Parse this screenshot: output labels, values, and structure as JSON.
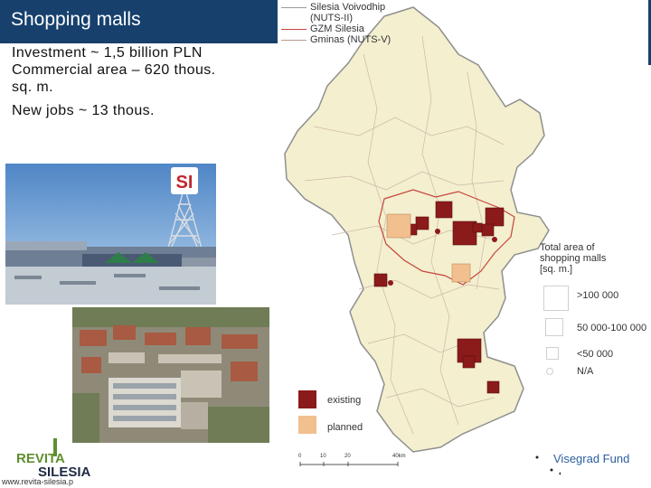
{
  "slide": {
    "title": "Shopping malls",
    "investment": "Investment ~ 1,5 billion PLN",
    "area_line1": "Commercial area – 620 thous.",
    "area_line2": "sq. m.",
    "jobs": "New jobs ~ 13 thous."
  },
  "map": {
    "legend_lines": [
      {
        "label": "Silesia Voivodhip",
        "color": "#9a9a9a"
      },
      {
        "label": "(NUTS-II)",
        "color": ""
      },
      {
        "label": "GZM Silesia",
        "color": "#c8453c"
      },
      {
        "label": "Gminas (NUTS-V)",
        "color": "#b89a8c"
      }
    ],
    "size_legend_title": [
      "Total area of",
      "shopping malls",
      "[sq. m.]"
    ],
    "size_classes": [
      ">100 000",
      "50 000-100 000",
      "<50 000",
      "N/A"
    ],
    "status_legend": [
      {
        "label": "existing",
        "color": "#8b1a1a"
      },
      {
        "label": "planned",
        "color": "#f2bf8f"
      }
    ],
    "scale_labels": [
      "0",
      "10",
      "20",
      "40km"
    ],
    "fill_color": "#f3efcf"
  },
  "photos": {
    "photo1_sign": "SI"
  },
  "branding": {
    "logo_top": "REVITA",
    "logo_bottom": "SILESIA",
    "url": "www.revita-silesia.p",
    "partner": "Visegrad Fund"
  }
}
